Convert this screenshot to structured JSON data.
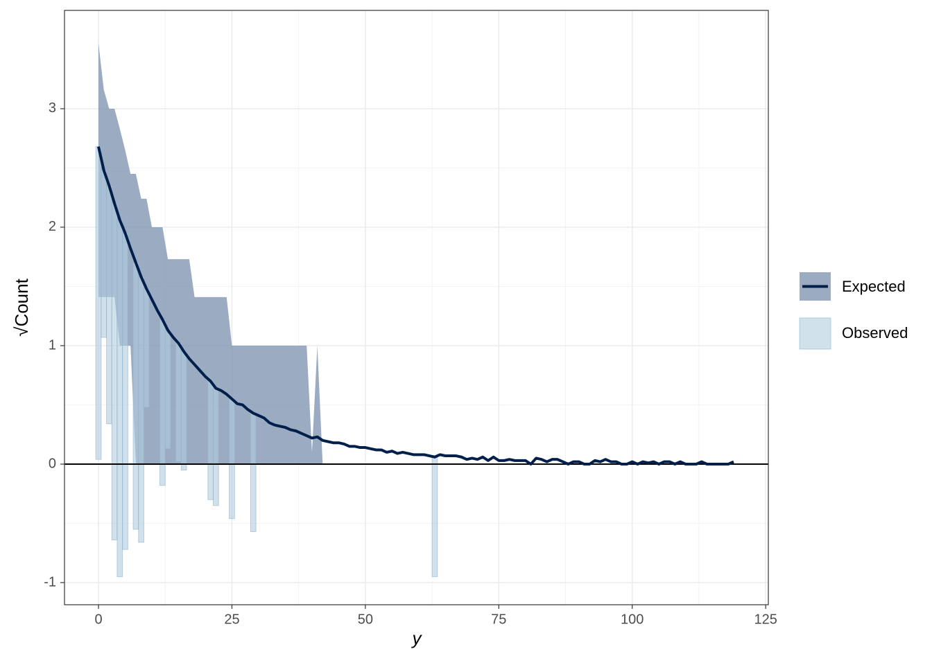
{
  "chart_data": {
    "type": "rootogram",
    "x_label": "y",
    "y_label": "√Count",
    "xlim": [
      -6.37,
      125.5
    ],
    "ylim": [
      -1.187,
      3.83
    ],
    "xticks": [
      0,
      25,
      50,
      75,
      100,
      125
    ],
    "yticks": [
      -1,
      0,
      1,
      2,
      3
    ],
    "grid": true,
    "hline": 0,
    "legend": "right",
    "series": [
      {
        "name": "Expected",
        "color": "#011f4b",
        "fill": "#7189a8",
        "x": [
          0,
          1,
          2,
          3,
          4,
          5,
          6,
          7,
          8,
          9,
          10,
          11,
          12,
          13,
          14,
          15,
          16,
          17,
          18,
          19,
          20,
          21,
          22,
          23,
          24,
          25,
          26,
          27,
          28,
          29,
          30,
          31,
          32,
          33,
          34,
          35,
          36,
          37,
          38,
          39,
          40,
          41,
          42,
          43,
          44,
          45,
          46,
          47,
          48,
          49,
          50,
          51,
          52,
          53,
          54,
          55,
          56,
          57,
          58,
          59,
          60,
          61,
          62,
          63,
          64,
          65,
          66,
          67,
          68,
          69,
          70,
          71,
          72,
          73,
          74,
          75,
          76,
          77,
          78,
          79,
          80,
          81,
          82,
          83,
          84,
          85,
          86,
          87,
          88,
          89,
          90,
          91,
          92,
          93,
          94,
          95,
          96,
          97,
          98,
          99,
          100,
          101,
          102,
          103,
          104,
          105,
          106,
          107,
          108,
          109,
          110,
          111,
          112,
          113,
          114,
          115,
          116,
          117,
          118,
          119
        ],
        "values": [
          2.68,
          2.48,
          2.35,
          2.2,
          2.06,
          1.95,
          1.82,
          1.7,
          1.58,
          1.48,
          1.39,
          1.3,
          1.22,
          1.13,
          1.07,
          1.02,
          0.95,
          0.89,
          0.84,
          0.79,
          0.74,
          0.7,
          0.64,
          0.62,
          0.59,
          0.55,
          0.51,
          0.5,
          0.46,
          0.43,
          0.41,
          0.39,
          0.35,
          0.33,
          0.32,
          0.31,
          0.29,
          0.28,
          0.26,
          0.24,
          0.22,
          0.23,
          0.2,
          0.19,
          0.18,
          0.18,
          0.17,
          0.15,
          0.15,
          0.14,
          0.14,
          0.13,
          0.12,
          0.12,
          0.1,
          0.11,
          0.09,
          0.1,
          0.09,
          0.08,
          0.08,
          0.08,
          0.07,
          0.06,
          0.08,
          0.07,
          0.07,
          0.07,
          0.06,
          0.04,
          0.05,
          0.04,
          0.06,
          0.03,
          0.06,
          0.03,
          0.03,
          0.04,
          0.03,
          0.03,
          0.03,
          0,
          0.05,
          0.04,
          0.02,
          0.04,
          0.04,
          0.02,
          0,
          0.02,
          0.02,
          0,
          0,
          0.03,
          0.02,
          0.04,
          0.02,
          0.02,
          0,
          0,
          0.02,
          0,
          0.02,
          0.01,
          0.02,
          0,
          0.02,
          0.02,
          0,
          0.02,
          0,
          0,
          0,
          0.02,
          0,
          0,
          0,
          0,
          0,
          0.02
        ]
      },
      {
        "name": "Observed",
        "color": "#b3cde0",
        "stroke": "#8fb2cc",
        "x": [
          0,
          1,
          2,
          3,
          4,
          5,
          7,
          8,
          9,
          12,
          13,
          15,
          16,
          21,
          22,
          25,
          29,
          63
        ],
        "values": [
          2.64,
          1.41,
          2.01,
          2.84,
          3.01,
          2.67,
          2.25,
          2.24,
          1.0,
          1.4,
          1.0,
          1.0,
          1.0,
          1.0,
          0.99,
          1.01,
          1.0,
          1.01
        ]
      }
    ],
    "band": {
      "x": [
        0,
        1,
        2,
        3,
        4,
        5,
        6,
        7,
        8,
        9,
        10,
        11,
        12,
        13,
        14,
        15,
        16,
        17,
        18,
        19,
        20,
        21,
        22,
        23,
        24,
        25,
        26,
        27,
        28,
        29,
        30,
        31,
        32,
        33,
        34,
        35,
        36,
        37,
        38,
        39,
        40,
        41,
        42
      ],
      "upper": [
        3.55,
        3.16,
        3.0,
        3.0,
        2.83,
        2.65,
        2.45,
        2.45,
        2.24,
        2.24,
        2.0,
        2.0,
        2.0,
        1.73,
        1.73,
        1.73,
        1.73,
        1.73,
        1.41,
        1.41,
        1.41,
        1.41,
        1.41,
        1.41,
        1.41,
        1.0,
        1.0,
        1.0,
        1.0,
        1.0,
        1.0,
        1.0,
        1.0,
        1.0,
        1.0,
        1.0,
        1.0,
        1.0,
        1.0,
        1.0,
        0.1,
        1.0,
        0
      ],
      "lower": [
        1.41,
        1.41,
        1.41,
        1.41,
        1.0,
        1.0,
        1.0,
        0,
        0,
        0,
        0,
        0,
        0,
        0,
        0,
        0,
        0,
        0,
        0,
        0,
        0,
        0,
        0,
        0,
        0,
        0,
        0,
        0,
        0,
        0,
        0,
        0,
        0,
        0,
        0,
        0,
        0,
        0,
        0,
        0,
        0,
        0,
        0
      ]
    }
  }
}
